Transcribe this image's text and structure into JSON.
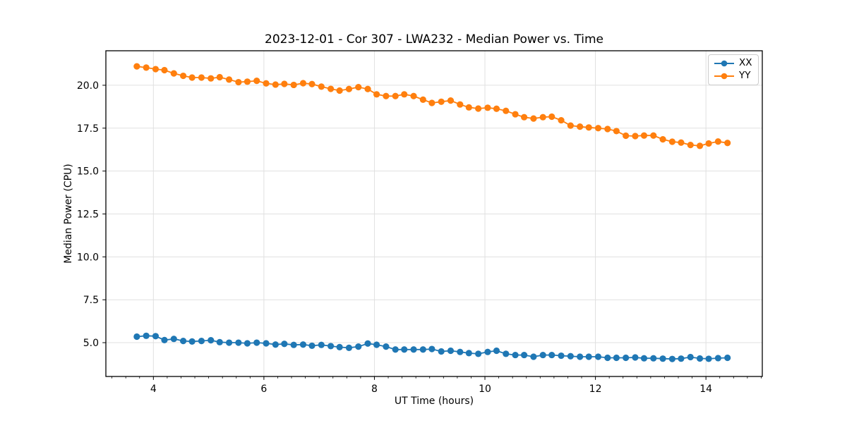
{
  "figure": {
    "title": "2023-12-01 - Cor 307 - LWA232 - Median Power vs. Time",
    "xlabel": "UT Time (hours)",
    "ylabel": "Median Power (CPU)"
  },
  "chart_data": {
    "type": "line",
    "title": "2023-12-01 - Cor 307 - LWA232 - Median Power vs. Time",
    "xlabel": "UT Time (hours)",
    "ylabel": "Median Power (CPU)",
    "xlim": [
      3.14,
      15.02
    ],
    "ylim": [
      3.03,
      22.01
    ],
    "x_ticks": [
      4,
      6,
      8,
      10,
      12,
      14
    ],
    "x_tick_labels": [
      "4",
      "6",
      "8",
      "10",
      "12",
      "14"
    ],
    "x_minor_step": 0.25,
    "y_ticks": [
      5.0,
      7.5,
      10.0,
      12.5,
      15.0,
      17.5,
      20.0
    ],
    "y_tick_labels": [
      "5.0",
      "7.5",
      "10.0",
      "12.5",
      "15.0",
      "17.5",
      "20.0"
    ],
    "grid": true,
    "grid_color": "#e0e0e0",
    "spine_color": "#000000",
    "legend_position": "upper right",
    "x": [
      3.7,
      3.87,
      4.04,
      4.2,
      4.37,
      4.54,
      4.7,
      4.87,
      5.04,
      5.2,
      5.37,
      5.54,
      5.7,
      5.87,
      6.04,
      6.21,
      6.37,
      6.54,
      6.71,
      6.87,
      7.04,
      7.21,
      7.37,
      7.54,
      7.71,
      7.88,
      8.04,
      8.21,
      8.38,
      8.54,
      8.71,
      8.88,
      9.04,
      9.21,
      9.38,
      9.55,
      9.71,
      9.88,
      10.05,
      10.21,
      10.38,
      10.55,
      10.71,
      10.88,
      11.05,
      11.21,
      11.38,
      11.55,
      11.72,
      11.88,
      12.05,
      12.22,
      12.38,
      12.55,
      12.72,
      12.88,
      13.05,
      13.22,
      13.39,
      13.55,
      13.72,
      13.89,
      14.05,
      14.22,
      14.39
    ],
    "series": [
      {
        "name": "XX",
        "color": "#1f77b4",
        "values": [
          5.35,
          5.4,
          5.38,
          5.15,
          5.22,
          5.1,
          5.07,
          5.1,
          5.14,
          5.03,
          5.0,
          5.0,
          4.96,
          5.0,
          4.96,
          4.89,
          4.93,
          4.87,
          4.89,
          4.82,
          4.87,
          4.8,
          4.74,
          4.7,
          4.77,
          4.95,
          4.88,
          4.77,
          4.6,
          4.6,
          4.6,
          4.6,
          4.63,
          4.49,
          4.53,
          4.46,
          4.39,
          4.35,
          4.46,
          4.53,
          4.35,
          4.28,
          4.28,
          4.18,
          4.28,
          4.28,
          4.24,
          4.21,
          4.18,
          4.18,
          4.18,
          4.12,
          4.12,
          4.12,
          4.14,
          4.09,
          4.09,
          4.07,
          4.05,
          4.07,
          4.16,
          4.08,
          4.06,
          4.1,
          4.12
        ]
      },
      {
        "name": "YY",
        "color": "#ff7f0e",
        "values": [
          21.1,
          21.03,
          20.94,
          20.88,
          20.69,
          20.55,
          20.45,
          20.45,
          20.4,
          20.47,
          20.33,
          20.18,
          20.21,
          20.26,
          20.11,
          20.04,
          20.08,
          20.02,
          20.12,
          20.07,
          19.92,
          19.79,
          19.69,
          19.78,
          19.89,
          19.78,
          19.47,
          19.37,
          19.37,
          19.47,
          19.37,
          19.16,
          18.97,
          19.04,
          19.11,
          18.88,
          18.71,
          18.64,
          18.69,
          18.63,
          18.51,
          18.31,
          18.14,
          18.06,
          18.14,
          18.17,
          17.96,
          17.65,
          17.59,
          17.54,
          17.5,
          17.45,
          17.33,
          17.06,
          17.04,
          17.07,
          17.07,
          16.85,
          16.71,
          16.66,
          16.52,
          16.47,
          16.61,
          16.72,
          16.64
        ]
      }
    ]
  },
  "legend": {
    "items": [
      {
        "label": "XX",
        "color": "#1f77b4"
      },
      {
        "label": "YY",
        "color": "#ff7f0e"
      }
    ]
  }
}
